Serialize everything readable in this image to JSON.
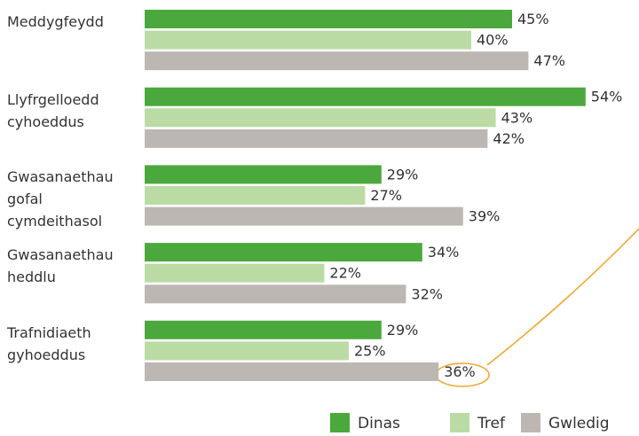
{
  "chart_data": {
    "type": "bar",
    "orientation": "horizontal",
    "categories": [
      "Meddygfeydd",
      "Llyfrgelloedd cyhoeddus",
      "Gwasanaethau gofal cymdeithasol",
      "Gwasanaethau heddlu",
      "Trafnidiaeth gyhoeddus"
    ],
    "series": [
      {
        "name": "Dinas",
        "color": "#4ba83d",
        "values": [
          45,
          54,
          29,
          34,
          29
        ],
        "value_labels": [
          "45%",
          "54%",
          "29%",
          "34%",
          "29%"
        ]
      },
      {
        "name": "Tref",
        "color": "#badca4",
        "values": [
          40,
          43,
          27,
          22,
          25
        ],
        "value_labels": [
          "40%",
          "43%",
          "27%",
          "22%",
          "25%"
        ]
      },
      {
        "name": "Gwledig",
        "color": "#bdb7b3",
        "values": [
          47,
          42,
          39,
          32,
          36
        ],
        "value_labels": [
          "47%",
          "42%",
          "39%",
          "32%",
          "36%"
        ]
      }
    ]
  }
}
